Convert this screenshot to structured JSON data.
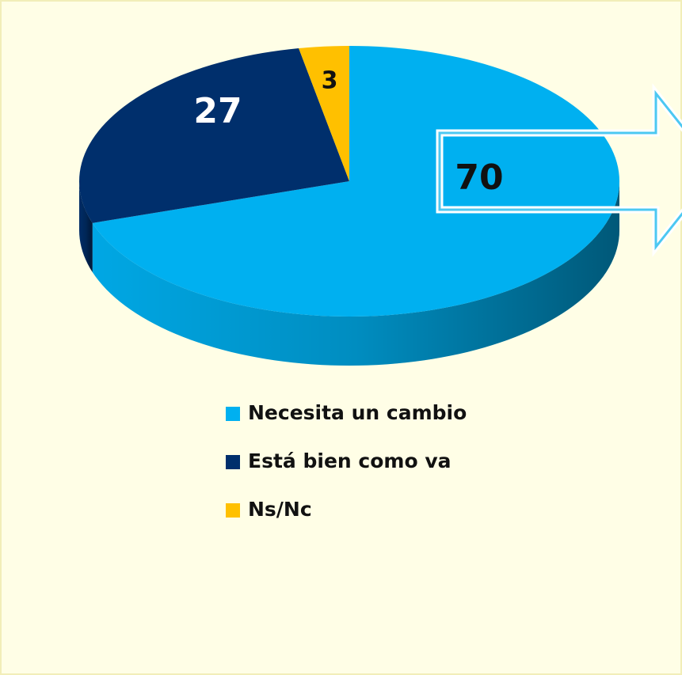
{
  "chart_data": {
    "type": "pie",
    "categories": [
      "Necesita un cambio",
      "Está bien como va",
      "Ns/Nc"
    ],
    "values": [
      70,
      27,
      3
    ],
    "colors": [
      "#00b0f0",
      "#002f6c",
      "#ffc000"
    ]
  }
}
